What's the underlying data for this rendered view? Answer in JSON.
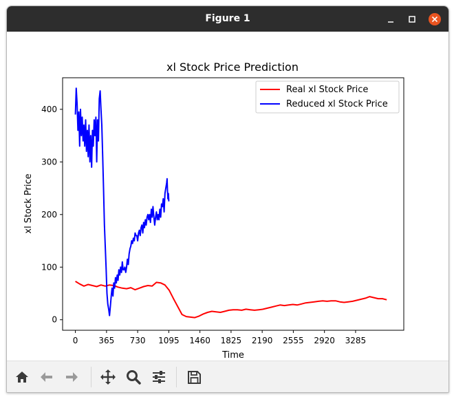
{
  "window": {
    "title": "Figure 1"
  },
  "toolbar": {
    "icons": [
      "home-icon",
      "back-arrow-icon",
      "forward-arrow-icon",
      "move-icon",
      "zoom-icon",
      "configure-subplots-icon",
      "save-icon"
    ]
  },
  "chart_data": {
    "type": "line",
    "title": "xl Stock Price Prediction",
    "xlabel": "Time",
    "ylabel": "xl Stock Price",
    "xticks": [
      0,
      365,
      730,
      1095,
      1460,
      1825,
      2190,
      2555,
      2920,
      3285
    ],
    "yticks": [
      0,
      100,
      200,
      300,
      400
    ],
    "xlim": [
      -150,
      3850
    ],
    "ylim": [
      -20,
      460
    ],
    "legend_position": "upper right",
    "grid": false,
    "series": [
      {
        "name": "Real xl Stock Price",
        "color": "#ff0000",
        "points": [
          [
            0,
            73
          ],
          [
            50,
            68
          ],
          [
            100,
            64
          ],
          [
            150,
            67
          ],
          [
            200,
            65
          ],
          [
            250,
            63
          ],
          [
            300,
            66
          ],
          [
            350,
            64
          ],
          [
            400,
            66
          ],
          [
            450,
            65
          ],
          [
            500,
            62
          ],
          [
            550,
            60
          ],
          [
            600,
            59
          ],
          [
            650,
            61
          ],
          [
            700,
            57
          ],
          [
            750,
            60
          ],
          [
            800,
            63
          ],
          [
            850,
            65
          ],
          [
            900,
            64
          ],
          [
            950,
            71
          ],
          [
            1000,
            70
          ],
          [
            1050,
            66
          ],
          [
            1100,
            56
          ],
          [
            1150,
            40
          ],
          [
            1200,
            25
          ],
          [
            1250,
            10
          ],
          [
            1300,
            6
          ],
          [
            1350,
            5
          ],
          [
            1400,
            4
          ],
          [
            1450,
            7
          ],
          [
            1500,
            11
          ],
          [
            1550,
            14
          ],
          [
            1600,
            16
          ],
          [
            1650,
            15
          ],
          [
            1700,
            14
          ],
          [
            1750,
            16
          ],
          [
            1800,
            18
          ],
          [
            1850,
            19
          ],
          [
            1900,
            19
          ],
          [
            1950,
            18
          ],
          [
            2000,
            20
          ],
          [
            2050,
            19
          ],
          [
            2100,
            18
          ],
          [
            2150,
            19
          ],
          [
            2200,
            20
          ],
          [
            2250,
            22
          ],
          [
            2300,
            24
          ],
          [
            2350,
            26
          ],
          [
            2400,
            28
          ],
          [
            2450,
            27
          ],
          [
            2500,
            28
          ],
          [
            2550,
            29
          ],
          [
            2600,
            28
          ],
          [
            2650,
            30
          ],
          [
            2700,
            32
          ],
          [
            2750,
            33
          ],
          [
            2800,
            34
          ],
          [
            2850,
            35
          ],
          [
            2900,
            36
          ],
          [
            2950,
            35
          ],
          [
            3000,
            36
          ],
          [
            3050,
            36
          ],
          [
            3100,
            34
          ],
          [
            3150,
            33
          ],
          [
            3200,
            34
          ],
          [
            3250,
            35
          ],
          [
            3300,
            37
          ],
          [
            3350,
            39
          ],
          [
            3400,
            41
          ],
          [
            3450,
            44
          ],
          [
            3500,
            42
          ],
          [
            3550,
            40
          ],
          [
            3600,
            40
          ],
          [
            3650,
            38
          ]
        ]
      },
      {
        "name": "Reduced xl Stock Price",
        "color": "#0000ff",
        "points": [
          [
            0,
            390
          ],
          [
            10,
            440
          ],
          [
            20,
            410
          ],
          [
            30,
            360
          ],
          [
            40,
            395
          ],
          [
            50,
            330
          ],
          [
            60,
            400
          ],
          [
            70,
            350
          ],
          [
            80,
            385
          ],
          [
            90,
            340
          ],
          [
            100,
            370
          ],
          [
            110,
            330
          ],
          [
            120,
            380
          ],
          [
            130,
            320
          ],
          [
            140,
            360
          ],
          [
            150,
            310
          ],
          [
            160,
            370
          ],
          [
            170,
            300
          ],
          [
            180,
            350
          ],
          [
            190,
            290
          ],
          [
            200,
            360
          ],
          [
            210,
            330
          ],
          [
            220,
            380
          ],
          [
            230,
            350
          ],
          [
            240,
            385
          ],
          [
            250,
            300
          ],
          [
            260,
            380
          ],
          [
            270,
            340
          ],
          [
            280,
            420
          ],
          [
            290,
            435
          ],
          [
            300,
            400
          ],
          [
            310,
            370
          ],
          [
            320,
            310
          ],
          [
            330,
            250
          ],
          [
            340,
            180
          ],
          [
            350,
            140
          ],
          [
            360,
            100
          ],
          [
            370,
            50
          ],
          [
            380,
            30
          ],
          [
            390,
            20
          ],
          [
            400,
            8
          ],
          [
            410,
            25
          ],
          [
            420,
            45
          ],
          [
            430,
            60
          ],
          [
            440,
            45
          ],
          [
            450,
            70
          ],
          [
            460,
            60
          ],
          [
            470,
            80
          ],
          [
            480,
            70
          ],
          [
            490,
            85
          ],
          [
            500,
            75
          ],
          [
            510,
            95
          ],
          [
            520,
            85
          ],
          [
            530,
            100
          ],
          [
            540,
            90
          ],
          [
            550,
            110
          ],
          [
            560,
            95
          ],
          [
            570,
            95
          ],
          [
            580,
            100
          ],
          [
            590,
            90
          ],
          [
            600,
            100
          ],
          [
            610,
            115
          ],
          [
            620,
            105
          ],
          [
            630,
            125
          ],
          [
            640,
            135
          ],
          [
            650,
            140
          ],
          [
            660,
            150
          ],
          [
            670,
            145
          ],
          [
            680,
            155
          ],
          [
            690,
            150
          ],
          [
            700,
            165
          ],
          [
            710,
            160
          ],
          [
            720,
            160
          ],
          [
            730,
            150
          ],
          [
            740,
            165
          ],
          [
            750,
            170
          ],
          [
            760,
            160
          ],
          [
            770,
            175
          ],
          [
            780,
            180
          ],
          [
            790,
            165
          ],
          [
            800,
            185
          ],
          [
            810,
            175
          ],
          [
            820,
            190
          ],
          [
            830,
            180
          ],
          [
            840,
            195
          ],
          [
            850,
            200
          ],
          [
            860,
            190
          ],
          [
            870,
            200
          ],
          [
            880,
            185
          ],
          [
            890,
            210
          ],
          [
            900,
            195
          ],
          [
            910,
            215
          ],
          [
            920,
            195
          ],
          [
            930,
            180
          ],
          [
            940,
            195
          ],
          [
            950,
            205
          ],
          [
            960,
            190
          ],
          [
            970,
            200
          ],
          [
            980,
            190
          ],
          [
            990,
            210
          ],
          [
            1000,
            195
          ],
          [
            1010,
            220
          ],
          [
            1020,
            215
          ],
          [
            1030,
            230
          ],
          [
            1040,
            205
          ],
          [
            1050,
            240
          ],
          [
            1060,
            250
          ],
          [
            1070,
            260
          ],
          [
            1075,
            268
          ],
          [
            1080,
            245
          ],
          [
            1085,
            230
          ],
          [
            1090,
            240
          ],
          [
            1095,
            225
          ]
        ]
      }
    ]
  }
}
